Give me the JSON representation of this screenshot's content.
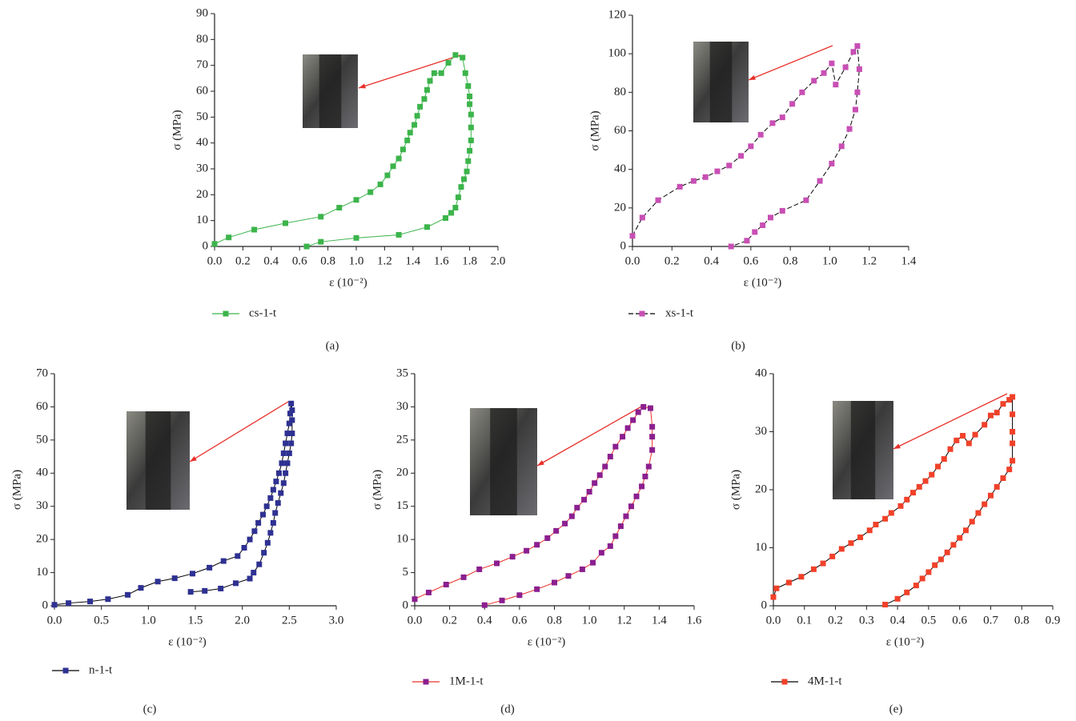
{
  "chart_data": [
    {
      "type": "line",
      "panel_label": "(a)",
      "x_label": "ε (10⁻²)",
      "y_label": "σ (MPa)",
      "xlim": [
        0,
        2
      ],
      "ylim": [
        0,
        90
      ],
      "xticks": [
        {
          "value": 0,
          "label": "0.0"
        },
        0.2,
        0.4,
        0.6,
        0.8,
        {
          "value": 1,
          "label": "1.0"
        },
        1.2,
        1.4,
        1.6,
        1.8,
        {
          "value": 2,
          "label": "2.0"
        }
      ],
      "yticks": [
        0,
        10,
        20,
        30,
        40,
        50,
        60,
        70,
        80,
        90
      ],
      "x": [
        0,
        0.1,
        0.28,
        0.5,
        0.75,
        0.88,
        1.0,
        1.1,
        1.17,
        1.22,
        1.26,
        1.3,
        1.33,
        1.36,
        1.38,
        1.41,
        1.43,
        1.45,
        1.48,
        1.5,
        1.52,
        1.55,
        1.6,
        1.65,
        1.7,
        1.75,
        1.77,
        1.79,
        1.8,
        1.8,
        1.81,
        1.81,
        1.81,
        1.8,
        1.79,
        1.78,
        1.76,
        1.74,
        1.72,
        1.7,
        1.67,
        1.63,
        1.5,
        1.3,
        1.0,
        0.75,
        0.65
      ],
      "series": [
        {
          "name": "cs-1-t",
          "color": "#3cb44b",
          "line_color": "#3cb44b",
          "line_style": "solid",
          "values": [
            1,
            3.5,
            6.5,
            9,
            11.5,
            15,
            18,
            21,
            24,
            27.5,
            31,
            34,
            37.5,
            41,
            44,
            47,
            50.5,
            54,
            57,
            60.5,
            64,
            67,
            67,
            71,
            74,
            73,
            67,
            62,
            58,
            55,
            51,
            46,
            41,
            37,
            33,
            29,
            26,
            23,
            19,
            15,
            13,
            11,
            7.5,
            4.5,
            3.3,
            1.8,
            0
          ]
        }
      ]
    },
    {
      "type": "line",
      "panel_label": "(b)",
      "x_label": "ε (10⁻²)",
      "y_label": "σ (MPa)",
      "xlim": [
        0,
        1.4
      ],
      "ylim": [
        0,
        120
      ],
      "xticks": [
        {
          "value": 0,
          "label": "0.0"
        },
        0.2,
        0.4,
        0.6,
        0.8,
        {
          "value": 1,
          "label": "1.0"
        },
        1.2,
        1.4
      ],
      "yticks": [
        0,
        20,
        40,
        60,
        80,
        100,
        120
      ],
      "x": [
        0,
        0.05,
        0.13,
        0.24,
        0.31,
        0.37,
        0.43,
        0.49,
        0.55,
        0.6,
        0.65,
        0.71,
        0.76,
        0.81,
        0.86,
        0.92,
        0.97,
        1.01,
        1.03,
        1.08,
        1.12,
        1.14,
        1.15,
        1.14,
        1.13,
        1.1,
        1.06,
        1.01,
        0.95,
        0.88,
        0.76,
        0.7,
        0.66,
        0.62,
        0.58,
        0.5
      ],
      "series": [
        {
          "name": "xs-1-t",
          "color": "#c84fb4",
          "line_color": "#000000",
          "line_style": "dashed",
          "values": [
            5.5,
            15,
            24,
            31,
            34,
            36,
            39,
            42,
            47,
            52,
            58,
            64,
            67,
            74,
            80,
            86,
            90,
            95,
            84,
            93,
            101,
            104,
            92,
            80,
            71,
            61,
            52,
            43,
            34,
            24,
            18.5,
            15,
            11,
            7.5,
            3,
            0
          ]
        }
      ]
    },
    {
      "type": "line",
      "panel_label": "(c)",
      "x_label": "ε (10⁻²)",
      "y_label": "σ (MPa)",
      "xlim": [
        0,
        3
      ],
      "ylim": [
        0,
        70
      ],
      "xticks": [
        {
          "value": 0,
          "label": "0.0"
        },
        0.5,
        {
          "value": 1,
          "label": "1.0"
        },
        1.5,
        {
          "value": 2,
          "label": "2.0"
        },
        2.5,
        {
          "value": 3,
          "label": "3.0"
        }
      ],
      "yticks": [
        0,
        10,
        20,
        30,
        40,
        50,
        60,
        70
      ],
      "x": [
        0,
        0.15,
        0.38,
        0.57,
        0.78,
        0.92,
        1.1,
        1.28,
        1.47,
        1.65,
        1.8,
        1.95,
        2.02,
        2.08,
        2.13,
        2.17,
        2.22,
        2.26,
        2.3,
        2.33,
        2.36,
        2.39,
        2.42,
        2.44,
        2.46,
        2.48,
        2.5,
        2.51,
        2.52,
        2.53,
        2.53,
        2.53,
        2.52,
        2.5,
        2.48,
        2.46,
        2.44,
        2.41,
        2.38,
        2.35,
        2.33,
        2.3,
        2.27,
        2.23,
        2.18,
        2.12,
        2.08,
        1.93,
        1.77,
        1.6,
        1.45
      ],
      "series": [
        {
          "name": "n-1-t",
          "color": "#2e3192",
          "line_color": "#000000",
          "line_style": "solid",
          "values": [
            0.3,
            0.8,
            1.3,
            2,
            3.3,
            5.4,
            7.3,
            8.3,
            9.7,
            11.5,
            13.5,
            15,
            17.5,
            20,
            22.5,
            25,
            27.5,
            30,
            32.5,
            35,
            37.5,
            40,
            43,
            46,
            49,
            52,
            55,
            58,
            61,
            59,
            56,
            52,
            49,
            46,
            43,
            40,
            37,
            34,
            31,
            28,
            25,
            22,
            19,
            16,
            12.5,
            10,
            8.2,
            6.8,
            5.2,
            4.5,
            4.2
          ]
        }
      ]
    },
    {
      "type": "line",
      "panel_label": "(d)",
      "x_label": "ε (10⁻²)",
      "y_label": "σ (MPa)",
      "xlim": [
        0,
        1.6
      ],
      "ylim": [
        0,
        35
      ],
      "xticks": [
        {
          "value": 0,
          "label": "0.0"
        },
        0.2,
        0.4,
        0.6,
        0.8,
        {
          "value": 1,
          "label": "1.0"
        },
        1.2,
        1.4,
        1.6
      ],
      "yticks": [
        0,
        5,
        10,
        15,
        20,
        25,
        30,
        35
      ],
      "x": [
        0,
        0.08,
        0.18,
        0.28,
        0.37,
        0.47,
        0.56,
        0.64,
        0.7,
        0.76,
        0.81,
        0.86,
        0.9,
        0.93,
        0.97,
        1.0,
        1.03,
        1.06,
        1.09,
        1.12,
        1.15,
        1.19,
        1.22,
        1.25,
        1.28,
        1.31,
        1.35,
        1.36,
        1.36,
        1.36,
        1.34,
        1.32,
        1.3,
        1.27,
        1.24,
        1.21,
        1.18,
        1.15,
        1.12,
        1.07,
        1.02,
        0.96,
        0.88,
        0.8,
        0.7,
        0.6,
        0.5,
        0.4
      ],
      "series": [
        {
          "name": "1M-1-t",
          "color": "#8b1f8f",
          "line_color": "#e8302a",
          "line_style": "solid",
          "values": [
            1,
            2,
            3.2,
            4.3,
            5.5,
            6.4,
            7.4,
            8.3,
            9.2,
            10.2,
            11.3,
            12.4,
            13.5,
            14.8,
            16,
            17.2,
            18.5,
            19.7,
            21,
            22.5,
            24,
            25.5,
            26.8,
            28,
            29.2,
            30,
            29.8,
            27,
            25.5,
            23.5,
            21,
            19.5,
            18,
            16.5,
            15,
            13.5,
            12,
            10.5,
            9,
            8,
            6.5,
            5.5,
            4.5,
            3.5,
            2.5,
            1.6,
            0.8,
            0.1
          ]
        }
      ]
    },
    {
      "type": "line",
      "panel_label": "(e)",
      "x_label": "ε (10⁻²)",
      "y_label": "σ (MPa)",
      "xlim": [
        0,
        0.9
      ],
      "ylim": [
        0,
        40
      ],
      "xticks": [
        {
          "value": 0,
          "label": "0.0"
        },
        0.1,
        0.2,
        0.3,
        0.4,
        0.5,
        0.6,
        0.7,
        0.8,
        0.9
      ],
      "yticks": [
        0,
        10,
        20,
        30,
        40
      ],
      "x": [
        0,
        0.01,
        0.05,
        0.09,
        0.13,
        0.16,
        0.19,
        0.22,
        0.25,
        0.28,
        0.31,
        0.33,
        0.36,
        0.38,
        0.41,
        0.43,
        0.45,
        0.47,
        0.49,
        0.51,
        0.53,
        0.55,
        0.57,
        0.59,
        0.61,
        0.63,
        0.65,
        0.68,
        0.7,
        0.72,
        0.74,
        0.76,
        0.77,
        0.77,
        0.77,
        0.77,
        0.77,
        0.76,
        0.74,
        0.72,
        0.7,
        0.68,
        0.66,
        0.64,
        0.62,
        0.6,
        0.58,
        0.56,
        0.54,
        0.52,
        0.5,
        0.48,
        0.46,
        0.43,
        0.4,
        0.36
      ],
      "series": [
        {
          "name": "4M-1-t",
          "color": "#f0412a",
          "line_color": "#000000",
          "line_style": "solid",
          "values": [
            1.5,
            3,
            4,
            5,
            6.3,
            7.3,
            8.5,
            9.8,
            10.8,
            11.8,
            13,
            14,
            15,
            16,
            17.2,
            18.3,
            19.5,
            20.5,
            21.5,
            22.6,
            24,
            25.3,
            27,
            28.5,
            29.3,
            28,
            29.5,
            31.2,
            32.8,
            33.3,
            34.8,
            35.5,
            36,
            33,
            30,
            28,
            25,
            23.5,
            22,
            20.5,
            19,
            17.5,
            16,
            14.5,
            13,
            11.7,
            10.5,
            9.2,
            8,
            7,
            5.8,
            4.7,
            3.5,
            2.3,
            1.2,
            0.2
          ]
        }
      ]
    }
  ]
}
